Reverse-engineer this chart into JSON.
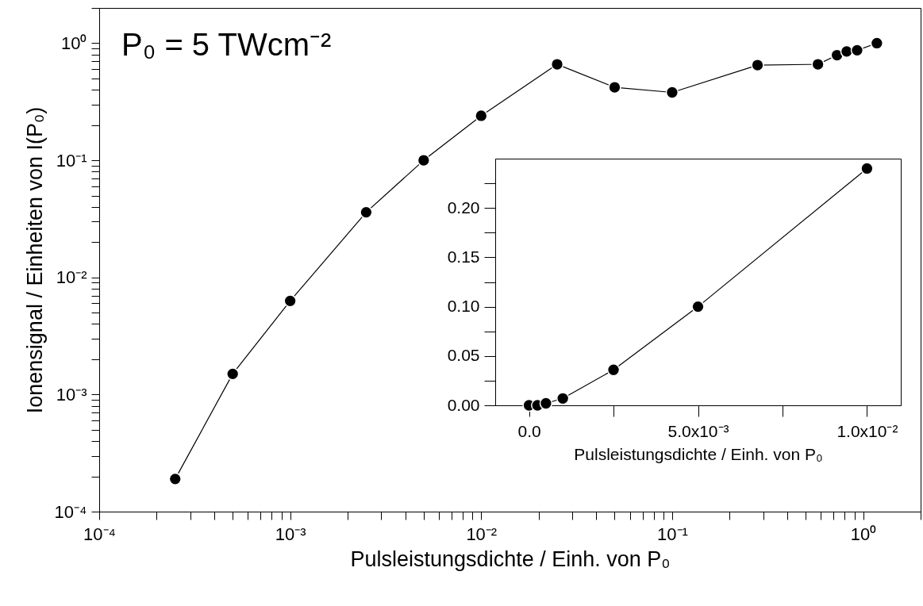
{
  "chart_data": [
    {
      "type": "line",
      "xlabel": "Pulsleistungsdichte / Einh. von P₀",
      "ylabel": "Ionensignal / Einheiten von I(P₀)",
      "annotations": [
        "P₀ = 5 TWcm⁻²"
      ],
      "log": "xy",
      "marker": "circle",
      "xlim": [
        0.0001,
        2
      ],
      "ylim": [
        0.0001,
        2
      ],
      "xticks": [
        {
          "value": 0.0001,
          "label": "10⁻⁴"
        },
        {
          "value": 0.0002,
          "label": null
        },
        {
          "value": 0.0003,
          "label": null
        },
        {
          "value": 0.0004,
          "label": null
        },
        {
          "value": 0.0005,
          "label": null
        },
        {
          "value": 0.0006,
          "label": null
        },
        {
          "value": 0.0007,
          "label": null
        },
        {
          "value": 0.0008,
          "label": null
        },
        {
          "value": 0.0009,
          "label": null
        },
        {
          "value": 0.001,
          "label": "10⁻³"
        },
        {
          "value": 0.002,
          "label": null
        },
        {
          "value": 0.003,
          "label": null
        },
        {
          "value": 0.004,
          "label": null
        },
        {
          "value": 0.005,
          "label": null
        },
        {
          "value": 0.006,
          "label": null
        },
        {
          "value": 0.007,
          "label": null
        },
        {
          "value": 0.008,
          "label": null
        },
        {
          "value": 0.009,
          "label": null
        },
        {
          "value": 0.01,
          "label": "10⁻²"
        },
        {
          "value": 0.02,
          "label": null
        },
        {
          "value": 0.03,
          "label": null
        },
        {
          "value": 0.04,
          "label": null
        },
        {
          "value": 0.05,
          "label": null
        },
        {
          "value": 0.06,
          "label": null
        },
        {
          "value": 0.07,
          "label": null
        },
        {
          "value": 0.08,
          "label": null
        },
        {
          "value": 0.09,
          "label": null
        },
        {
          "value": 0.1,
          "label": "10⁻¹"
        },
        {
          "value": 0.2,
          "label": null
        },
        {
          "value": 0.3,
          "label": null
        },
        {
          "value": 0.4,
          "label": null
        },
        {
          "value": 0.5,
          "label": null
        },
        {
          "value": 0.6,
          "label": null
        },
        {
          "value": 0.7,
          "label": null
        },
        {
          "value": 0.8,
          "label": null
        },
        {
          "value": 0.9,
          "label": null
        },
        {
          "value": 1,
          "label": "10⁰"
        },
        {
          "value": 2,
          "label": null
        }
      ],
      "yticks": [
        {
          "value": 0.0001,
          "label": "10⁻⁴"
        },
        {
          "value": 0.0002,
          "label": null
        },
        {
          "value": 0.0003,
          "label": null
        },
        {
          "value": 0.0004,
          "label": null
        },
        {
          "value": 0.0005,
          "label": null
        },
        {
          "value": 0.0006,
          "label": null
        },
        {
          "value": 0.0007,
          "label": null
        },
        {
          "value": 0.0008,
          "label": null
        },
        {
          "value": 0.0009,
          "label": null
        },
        {
          "value": 0.001,
          "label": "10⁻³"
        },
        {
          "value": 0.002,
          "label": null
        },
        {
          "value": 0.003,
          "label": null
        },
        {
          "value": 0.004,
          "label": null
        },
        {
          "value": 0.005,
          "label": null
        },
        {
          "value": 0.006,
          "label": null
        },
        {
          "value": 0.007,
          "label": null
        },
        {
          "value": 0.008,
          "label": null
        },
        {
          "value": 0.009,
          "label": null
        },
        {
          "value": 0.01,
          "label": "10⁻²"
        },
        {
          "value": 0.02,
          "label": null
        },
        {
          "value": 0.03,
          "label": null
        },
        {
          "value": 0.04,
          "label": null
        },
        {
          "value": 0.05,
          "label": null
        },
        {
          "value": 0.06,
          "label": null
        },
        {
          "value": 0.07,
          "label": null
        },
        {
          "value": 0.08,
          "label": null
        },
        {
          "value": 0.09,
          "label": null
        },
        {
          "value": 0.1,
          "label": "10⁻¹"
        },
        {
          "value": 0.2,
          "label": null
        },
        {
          "value": 0.3,
          "label": null
        },
        {
          "value": 0.4,
          "label": null
        },
        {
          "value": 0.5,
          "label": null
        },
        {
          "value": 0.6,
          "label": null
        },
        {
          "value": 0.7,
          "label": null
        },
        {
          "value": 0.8,
          "label": null
        },
        {
          "value": 0.9,
          "label": null
        },
        {
          "value": 1,
          "label": "10⁰"
        },
        {
          "value": 2,
          "label": null
        }
      ],
      "x": [
        0.00025,
        0.0005,
        0.001,
        0.0025,
        0.005,
        0.01,
        0.025,
        0.05,
        0.1,
        0.28,
        0.58,
        0.73,
        0.82,
        0.93,
        1.18
      ],
      "series": [
        {
          "color": "#000000",
          "values": [
            0.00019,
            0.0015,
            0.0063,
            0.036,
            0.1,
            0.24,
            0.66,
            0.42,
            0.38,
            0.65,
            0.66,
            0.79,
            0.85,
            0.87,
            1.0
          ]
        }
      ]
    },
    {
      "type": "line",
      "xlabel": "Pulsleistungsdichte / Einh. von P₀",
      "marker": "circle",
      "xlim": [
        -0.001,
        0.011
      ],
      "ylim": [
        0,
        0.25
      ],
      "xticks": [
        {
          "value": 0,
          "label": "0.0"
        },
        {
          "value": 0.0025,
          "label": null
        },
        {
          "value": 0.005,
          "label": "5.0x10⁻³"
        },
        {
          "value": 0.0075,
          "label": null
        },
        {
          "value": 0.01,
          "label": "1.0x10⁻²"
        }
      ],
      "yticks": [
        {
          "value": 0,
          "label": "0.00"
        },
        {
          "value": 0.025,
          "label": null
        },
        {
          "value": 0.05,
          "label": "0.05"
        },
        {
          "value": 0.075,
          "label": null
        },
        {
          "value": 0.1,
          "label": "0.10"
        },
        {
          "value": 0.125,
          "label": null
        },
        {
          "value": 0.15,
          "label": "0.15"
        },
        {
          "value": 0.175,
          "label": null
        },
        {
          "value": 0.2,
          "label": "0.20"
        },
        {
          "value": 0.225,
          "label": null
        }
      ],
      "x": [
        0,
        0.00025,
        0.0005,
        0.001,
        0.0025,
        0.005,
        0.01
      ],
      "series": [
        {
          "color": "#000000",
          "values": [
            0,
            0,
            0.002,
            0.007,
            0.036,
            0.1,
            0.24
          ]
        }
      ]
    }
  ]
}
